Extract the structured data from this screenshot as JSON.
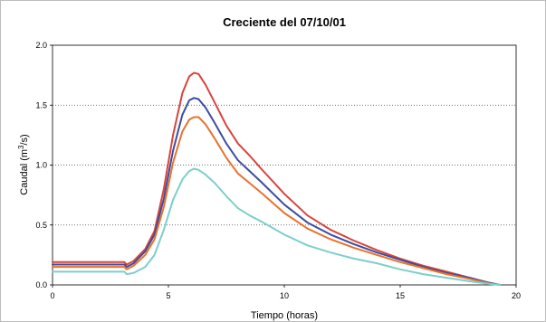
{
  "chart_data": {
    "type": "line",
    "title": "Creciente del 07/10/01",
    "xlabel": "Tiempo (horas)",
    "ylabel_parts": [
      "Caudal (m",
      "3",
      "/s)"
    ],
    "xlim": [
      0,
      20
    ],
    "ylim": [
      0,
      2.0
    ],
    "x_ticks": [
      0,
      5,
      10,
      15,
      20
    ],
    "x_tick_labels": [
      "0",
      "5",
      "10",
      "15",
      "20"
    ],
    "y_ticks": [
      0,
      0.5,
      1.0,
      1.5,
      2.0
    ],
    "y_tick_labels": [
      "0.0",
      "0.5",
      "1.0",
      "1.5",
      "2.0"
    ],
    "grid": "horizontal dotted",
    "series": [
      {
        "color": "#d8443c",
        "points": [
          [
            0,
            0.19
          ],
          [
            3.1,
            0.19
          ],
          [
            3.2,
            0.17
          ],
          [
            3.5,
            0.2
          ],
          [
            4,
            0.3
          ],
          [
            4.4,
            0.45
          ],
          [
            4.8,
            0.8
          ],
          [
            5.2,
            1.25
          ],
          [
            5.6,
            1.6
          ],
          [
            5.9,
            1.74
          ],
          [
            6.1,
            1.77
          ],
          [
            6.3,
            1.76
          ],
          [
            6.6,
            1.67
          ],
          [
            7,
            1.52
          ],
          [
            7.5,
            1.33
          ],
          [
            8,
            1.18
          ],
          [
            8.5,
            1.08
          ],
          [
            9,
            0.97
          ],
          [
            10,
            0.76
          ],
          [
            11,
            0.58
          ],
          [
            12,
            0.46
          ],
          [
            13,
            0.37
          ],
          [
            14,
            0.29
          ],
          [
            15,
            0.22
          ],
          [
            16,
            0.16
          ],
          [
            17,
            0.11
          ],
          [
            18,
            0.06
          ],
          [
            18.7,
            0.02
          ],
          [
            19.3,
            0
          ]
        ]
      },
      {
        "color": "#3b4da0",
        "points": [
          [
            0,
            0.17
          ],
          [
            3.1,
            0.17
          ],
          [
            3.2,
            0.15
          ],
          [
            3.5,
            0.18
          ],
          [
            4,
            0.28
          ],
          [
            4.4,
            0.42
          ],
          [
            4.8,
            0.72
          ],
          [
            5.2,
            1.12
          ],
          [
            5.6,
            1.42
          ],
          [
            5.9,
            1.54
          ],
          [
            6.1,
            1.56
          ],
          [
            6.3,
            1.55
          ],
          [
            6.6,
            1.48
          ],
          [
            7,
            1.35
          ],
          [
            7.5,
            1.18
          ],
          [
            8,
            1.04
          ],
          [
            8.5,
            0.95
          ],
          [
            9,
            0.86
          ],
          [
            10,
            0.67
          ],
          [
            11,
            0.52
          ],
          [
            12,
            0.42
          ],
          [
            13,
            0.34
          ],
          [
            14,
            0.27
          ],
          [
            15,
            0.21
          ],
          [
            16,
            0.15
          ],
          [
            17,
            0.1
          ],
          [
            18,
            0.06
          ],
          [
            18.8,
            0.02
          ],
          [
            19.3,
            0
          ]
        ]
      },
      {
        "color": "#e8722e",
        "points": [
          [
            0,
            0.15
          ],
          [
            3.1,
            0.15
          ],
          [
            3.2,
            0.13
          ],
          [
            3.5,
            0.16
          ],
          [
            4,
            0.25
          ],
          [
            4.4,
            0.38
          ],
          [
            4.8,
            0.65
          ],
          [
            5.2,
            1.02
          ],
          [
            5.6,
            1.28
          ],
          [
            5.9,
            1.38
          ],
          [
            6.1,
            1.4
          ],
          [
            6.3,
            1.4
          ],
          [
            6.6,
            1.34
          ],
          [
            7,
            1.22
          ],
          [
            7.5,
            1.06
          ],
          [
            8,
            0.93
          ],
          [
            8.5,
            0.85
          ],
          [
            9,
            0.77
          ],
          [
            10,
            0.6
          ],
          [
            11,
            0.47
          ],
          [
            12,
            0.38
          ],
          [
            13,
            0.31
          ],
          [
            14,
            0.25
          ],
          [
            15,
            0.19
          ],
          [
            16,
            0.14
          ],
          [
            17,
            0.09
          ],
          [
            18,
            0.05
          ],
          [
            18.9,
            0.01
          ],
          [
            19.3,
            0
          ]
        ]
      },
      {
        "color": "#7ccfcb",
        "points": [
          [
            0,
            0.11
          ],
          [
            3.1,
            0.11
          ],
          [
            3.2,
            0.09
          ],
          [
            3.5,
            0.1
          ],
          [
            4,
            0.15
          ],
          [
            4.4,
            0.25
          ],
          [
            4.8,
            0.46
          ],
          [
            5.2,
            0.71
          ],
          [
            5.6,
            0.88
          ],
          [
            5.9,
            0.95
          ],
          [
            6.1,
            0.97
          ],
          [
            6.3,
            0.96
          ],
          [
            6.6,
            0.92
          ],
          [
            7,
            0.85
          ],
          [
            7.5,
            0.74
          ],
          [
            8,
            0.64
          ],
          [
            8.5,
            0.58
          ],
          [
            9,
            0.53
          ],
          [
            10,
            0.42
          ],
          [
            11,
            0.33
          ],
          [
            12,
            0.27
          ],
          [
            13,
            0.22
          ],
          [
            14,
            0.18
          ],
          [
            15,
            0.13
          ],
          [
            16,
            0.09
          ],
          [
            17,
            0.06
          ],
          [
            18,
            0.03
          ],
          [
            18.8,
            0.01
          ],
          [
            19.3,
            0
          ]
        ]
      }
    ]
  }
}
